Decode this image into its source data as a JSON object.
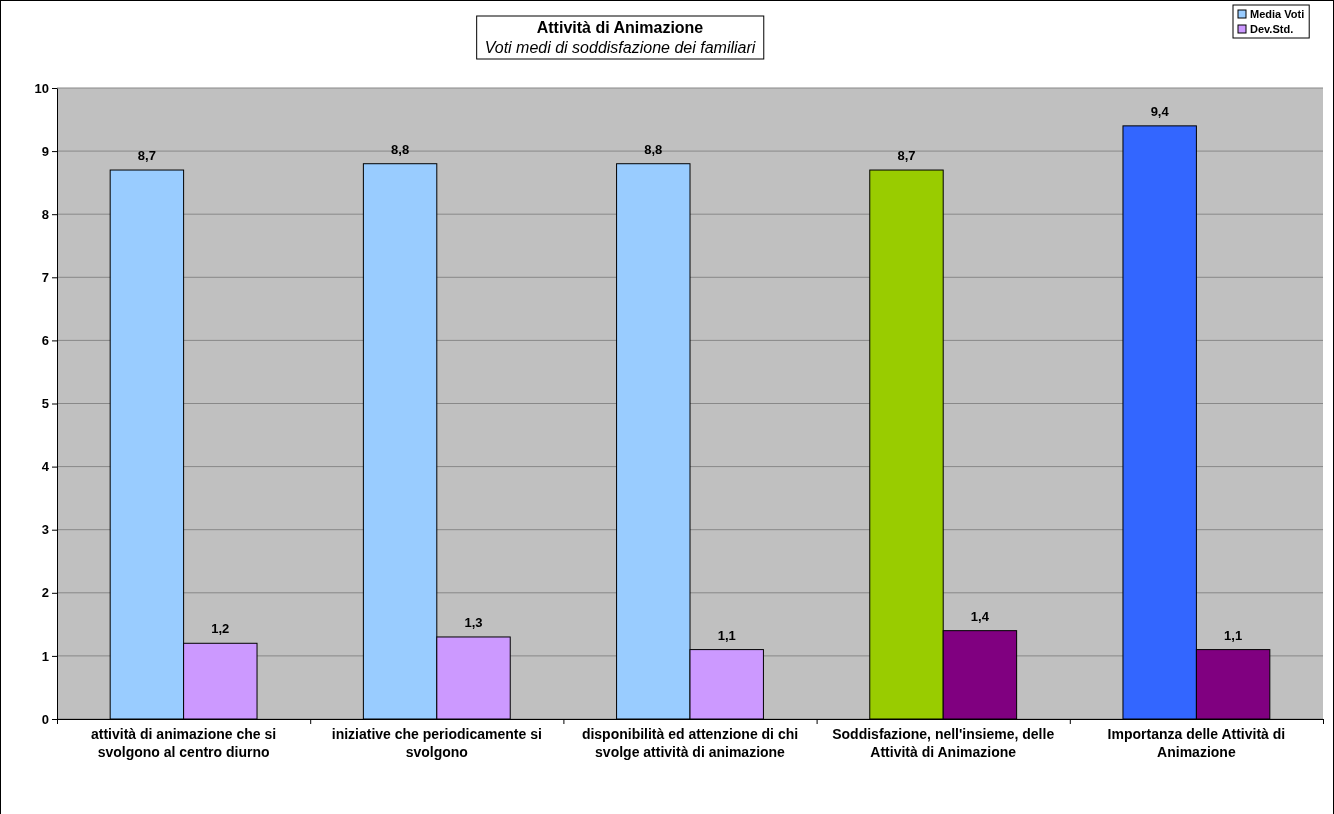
{
  "chart_data": {
    "type": "bar",
    "title": "Attività di Animazione",
    "subtitle": "Voti medi di soddisfazione dei familiari",
    "categories": [
      "attività di animazione che si svolgono al centro diurno",
      "iniziative che periodicamente si svolgono",
      "disponibilità ed attenzione di chi svolge attività di animazione",
      "Soddisfazione, nell'insieme, delle Attività di Animazione",
      "Importanza delle Attività di Animazione"
    ],
    "series": [
      {
        "name": "Media Voti",
        "color": "#99ccff",
        "colors": [
          "#99ccff",
          "#99ccff",
          "#99ccff",
          "#99cc00",
          "#3366ff"
        ],
        "values": [
          8.7,
          8.8,
          8.8,
          8.7,
          9.4
        ],
        "value_labels": [
          "8,7",
          "8,8",
          "8,8",
          "8,7",
          "9,4"
        ]
      },
      {
        "name": "Dev.Std.",
        "color": "#cc99ff",
        "colors": [
          "#cc99ff",
          "#cc99ff",
          "#cc99ff",
          "#800080",
          "#800080"
        ],
        "values": [
          1.2,
          1.3,
          1.1,
          1.4,
          1.1
        ],
        "value_labels": [
          "1,2",
          "1,3",
          "1,1",
          "1,4",
          "1,1"
        ]
      }
    ],
    "ylim": [
      0,
      10
    ],
    "yticks": [
      0,
      1,
      2,
      3,
      4,
      5,
      6,
      7,
      8,
      9,
      10
    ],
    "grid": "y",
    "legend": "top right"
  }
}
